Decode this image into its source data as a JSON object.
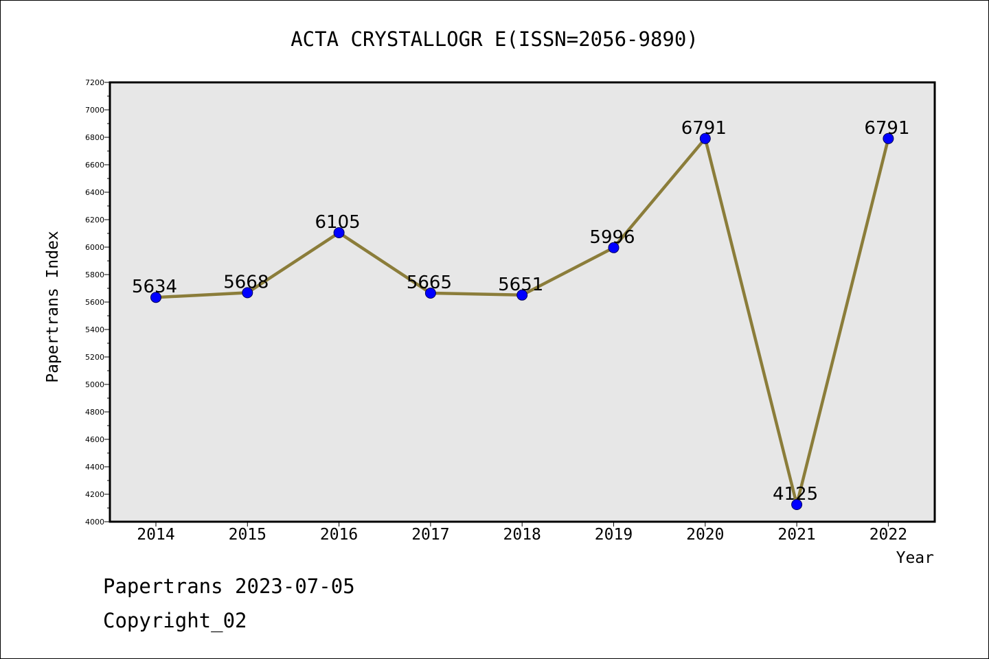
{
  "chart_data": {
    "type": "line",
    "title": "ACTA CRYSTALLOGR E(ISSN=2056-9890)",
    "xlabel": "Year",
    "ylabel": "Papertrans Index",
    "categories": [
      "2014",
      "2015",
      "2016",
      "2017",
      "2018",
      "2019",
      "2020",
      "2021",
      "2022"
    ],
    "series": [
      {
        "values": [
          5634,
          5668,
          6105,
          5665,
          5651,
          5996,
          6791,
          4125,
          6791
        ],
        "data_labels": [
          "5634",
          "5668",
          "6105",
          "5665",
          "5651",
          "5996",
          "6791",
          "4125",
          "6791"
        ]
      }
    ],
    "ylim": [
      4000,
      7200
    ],
    "yticks": [
      4000,
      4200,
      4400,
      4600,
      4800,
      5000,
      5200,
      5400,
      5600,
      5800,
      6000,
      6200,
      6400,
      6600,
      6800,
      7000,
      7200
    ],
    "ytick_labels": [
      "4000",
      "4200",
      "4400",
      "4600",
      "4800",
      "5000",
      "5200",
      "5400",
      "5600",
      "5800",
      "6000",
      "6200",
      "6400",
      "6600",
      "6800",
      "7000",
      "7200"
    ],
    "grid": false,
    "line_color": "#8b7d3a",
    "marker_color": "#0000ff",
    "plot_background": "#e7e7e7"
  },
  "footer": {
    "line1": "Papertrans 2023-07-05",
    "line2": "Copyright_02"
  }
}
